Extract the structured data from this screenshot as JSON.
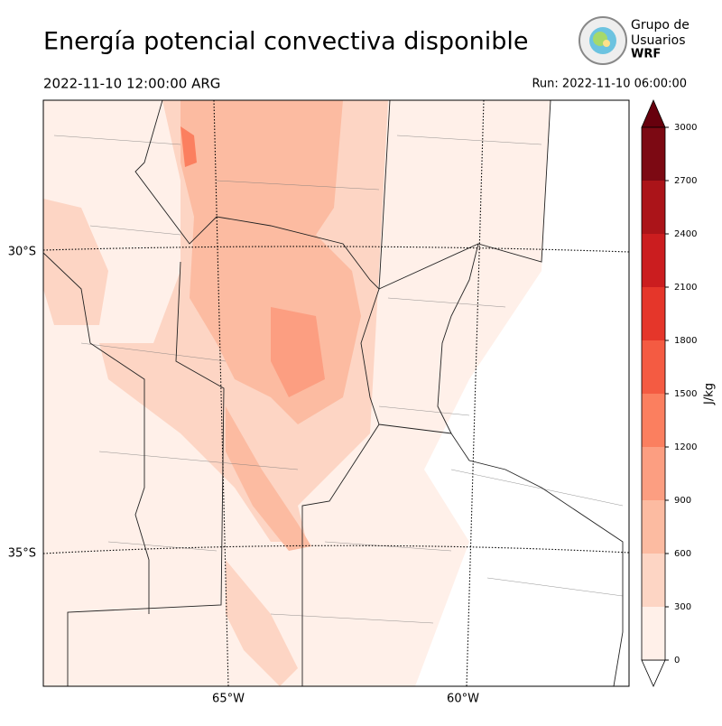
{
  "header": {
    "title": "Energía potencial convectiva disponible",
    "valid_time": "2022-11-10 12:00:00 ARG",
    "run": "Run: 2022-11-10 06:00:00"
  },
  "logo": {
    "lines": [
      "Grupo de",
      "Usuarios",
      "WRF"
    ]
  },
  "map": {
    "lat_labels": [
      "30°S",
      "35°S"
    ],
    "lon_labels": [
      "65°W",
      "60°W"
    ]
  },
  "colorbar": {
    "label": "J/kg",
    "ticks": [
      0,
      300,
      600,
      900,
      1200,
      1500,
      1800,
      2100,
      2400,
      2700,
      3000
    ],
    "colors": [
      "#fff0e9",
      "#fdd5c4",
      "#fcbba1",
      "#fc9e81",
      "#fb7f5f",
      "#f45b42",
      "#e5362a",
      "#cb1d1f",
      "#ab1419",
      "#7c0913"
    ],
    "over_color": "#67000d",
    "under_color": "#ffffff"
  }
}
